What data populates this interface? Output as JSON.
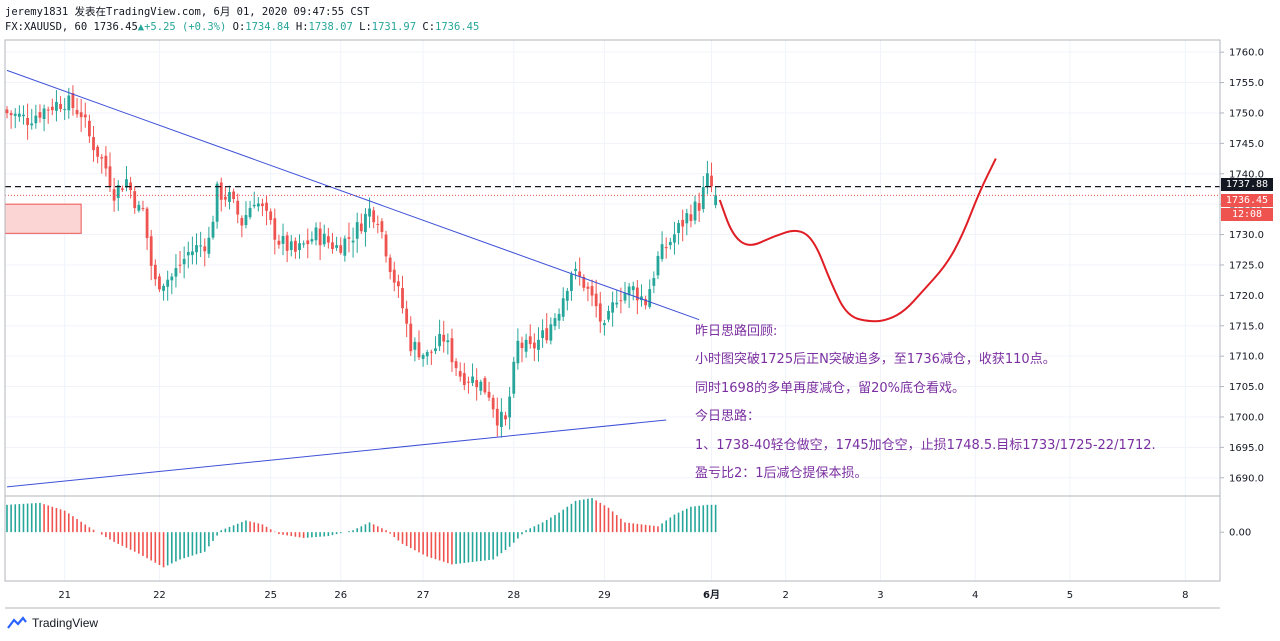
{
  "header": {
    "line1": "jeremy1831 发表在TradingView.com, 6月 01, 2020 09:47:55 CST",
    "symbol": "FX:XAUUSD, 60",
    "last": "1736.45",
    "change": "+5.25 (+0.3%)",
    "o_label": "O:",
    "o_value": "1734.84",
    "h_label": "H:",
    "h_value": "1738.07",
    "l_label": "L:",
    "l_value": "1731.97",
    "c_label": "C:",
    "c_value": "1736.45"
  },
  "price_tags": {
    "level": "1737.88",
    "last": "1736.45",
    "countdown": "12:08"
  },
  "notes": [
    "昨日思路回顾:",
    "小时图突破1725后正N突破追多，至1736减仓，收获110点。",
    "同时1698的多单再度减仓，留20%底仓看戏。",
    "今日思路：",
    "1、1738-40轻仓做空，1745加仓空，止损1748.5.目标1733/1725-22/1712.",
    "盈亏比2：1后减仓提保本损。"
  ],
  "footer": {
    "brand": "TradingView"
  },
  "colors": {
    "up": "#26a69a",
    "down": "#ef5350",
    "trend": "#3f51d8",
    "path": "#e01e26",
    "note": "#7b2fa0"
  },
  "chart_data": {
    "type": "candlestick",
    "symbol": "FX:XAUUSD",
    "interval": "60",
    "ylim": [
      1687,
      1762
    ],
    "y_ticks": [
      1690,
      1695,
      1700,
      1705,
      1710,
      1715,
      1720,
      1725,
      1730,
      1735,
      1740,
      1745,
      1750,
      1755,
      1760
    ],
    "x_tick_labels": [
      {
        "label": "21",
        "bar": 14
      },
      {
        "label": "22",
        "bar": 37
      },
      {
        "label": "25",
        "bar": 64
      },
      {
        "label": "26",
        "bar": 81
      },
      {
        "label": "27",
        "bar": 101
      },
      {
        "label": "28",
        "bar": 123
      },
      {
        "label": "29",
        "bar": 145
      },
      {
        "label": "6月",
        "bar": 171
      },
      {
        "label": "2",
        "bar": 189
      },
      {
        "label": "3",
        "bar": 212
      },
      {
        "label": "4",
        "bar": 235
      },
      {
        "label": "5",
        "bar": 258
      },
      {
        "label": "8",
        "bar": 286
      }
    ],
    "close_anchors": [
      [
        0,
        1750
      ],
      [
        5,
        1749
      ],
      [
        10,
        1751
      ],
      [
        14,
        1752
      ],
      [
        18,
        1750
      ],
      [
        20,
        1746
      ],
      [
        24,
        1741
      ],
      [
        26,
        1737
      ],
      [
        29,
        1739
      ],
      [
        32,
        1734
      ],
      [
        33,
        1734
      ],
      [
        35,
        1725
      ],
      [
        36,
        1722
      ],
      [
        40,
        1723
      ],
      [
        44,
        1727
      ],
      [
        49,
        1729
      ],
      [
        51,
        1737
      ],
      [
        54,
        1736
      ],
      [
        57,
        1732
      ],
      [
        60,
        1736
      ],
      [
        62,
        1734
      ],
      [
        66,
        1729
      ],
      [
        70,
        1727
      ],
      [
        75,
        1730
      ],
      [
        80,
        1728
      ],
      [
        84,
        1730
      ],
      [
        88,
        1734
      ],
      [
        90,
        1733
      ],
      [
        93,
        1725
      ],
      [
        96,
        1718
      ],
      [
        98,
        1712
      ],
      [
        102,
        1710
      ],
      [
        106,
        1713
      ],
      [
        110,
        1707
      ],
      [
        114,
        1706
      ],
      [
        117,
        1704
      ],
      [
        119,
        1700
      ],
      [
        121,
        1699
      ],
      [
        124,
        1712
      ],
      [
        127,
        1711
      ],
      [
        131,
        1714
      ],
      [
        134,
        1718
      ],
      [
        137,
        1724
      ],
      [
        140,
        1722
      ],
      [
        143,
        1718
      ],
      [
        145,
        1714
      ],
      [
        148,
        1720
      ],
      [
        152,
        1721
      ],
      [
        155,
        1719
      ],
      [
        158,
        1726
      ],
      [
        162,
        1730
      ],
      [
        165,
        1733
      ],
      [
        168,
        1735
      ],
      [
        170,
        1739
      ],
      [
        172,
        1736.45
      ]
    ],
    "trendlines": [
      {
        "from": {
          "bar": 0,
          "price": 1757
        },
        "to": {
          "bar": 168,
          "price": 1716
        }
      },
      {
        "from": {
          "bar": 0,
          "price": 1688.5
        },
        "to": {
          "bar": 160,
          "price": 1699.5
        }
      }
    ],
    "horizontal_lines": [
      {
        "price": 1737.88,
        "style": "dashed-black"
      },
      {
        "price": 1736.45,
        "style": "dotted-red"
      }
    ],
    "rectangle": {
      "from_bar": 0,
      "to_bar": 18,
      "price_top": 1735,
      "price_bottom": 1730.2
    },
    "projected_path": [
      [
        173,
        1735.7
      ],
      [
        176,
        1730
      ],
      [
        180,
        1727.8
      ],
      [
        186,
        1729.7
      ],
      [
        192,
        1731
      ],
      [
        196,
        1729
      ],
      [
        200,
        1722
      ],
      [
        204,
        1716.5
      ],
      [
        210,
        1715.6
      ],
      [
        214,
        1716
      ],
      [
        218,
        1717.5
      ],
      [
        222,
        1720.5
      ],
      [
        228,
        1725
      ],
      [
        232,
        1730
      ],
      [
        236,
        1737
      ],
      [
        240,
        1742.5
      ]
    ],
    "oscillator": {
      "ylim": [
        -0.5,
        0.36
      ],
      "y_ticks": [
        0.0
      ],
      "tick_labels": [
        "0.00"
      ],
      "anchors": [
        [
          0,
          0.28
        ],
        [
          8,
          0.3
        ],
        [
          14,
          0.22
        ],
        [
          20,
          0.05
        ],
        [
          26,
          -0.1
        ],
        [
          32,
          -0.22
        ],
        [
          38,
          -0.36
        ],
        [
          42,
          -0.28
        ],
        [
          48,
          -0.2
        ],
        [
          52,
          0.02
        ],
        [
          58,
          0.12
        ],
        [
          62,
          0.08
        ],
        [
          66,
          -0.02
        ],
        [
          72,
          -0.06
        ],
        [
          78,
          -0.04
        ],
        [
          84,
          0.02
        ],
        [
          88,
          0.1
        ],
        [
          92,
          0.02
        ],
        [
          96,
          -0.12
        ],
        [
          102,
          -0.25
        ],
        [
          108,
          -0.33
        ],
        [
          114,
          -0.3
        ],
        [
          118,
          -0.28
        ],
        [
          122,
          -0.15
        ],
        [
          126,
          0.02
        ],
        [
          130,
          0.1
        ],
        [
          134,
          0.2
        ],
        [
          138,
          0.32
        ],
        [
          142,
          0.35
        ],
        [
          146,
          0.25
        ],
        [
          150,
          0.1
        ],
        [
          154,
          0.08
        ],
        [
          158,
          0.06
        ],
        [
          162,
          0.18
        ],
        [
          166,
          0.26
        ],
        [
          170,
          0.28
        ],
        [
          172,
          0.28
        ]
      ]
    }
  }
}
